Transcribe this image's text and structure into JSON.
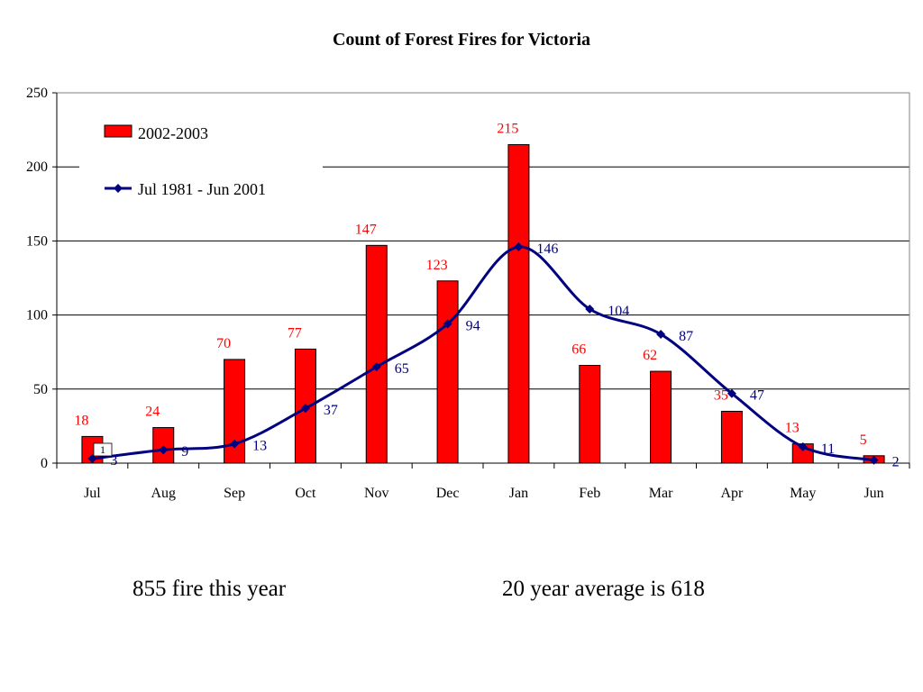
{
  "chart_data": {
    "type": "bar",
    "title": "Count of Forest Fires for Victoria",
    "categories": [
      "Jul",
      "Aug",
      "Sep",
      "Oct",
      "Nov",
      "Dec",
      "Jan",
      "Feb",
      "Mar",
      "Apr",
      "May",
      "Jun"
    ],
    "ylim": [
      0,
      250
    ],
    "yticks": [
      0,
      50,
      100,
      150,
      200,
      250
    ],
    "grid": true,
    "legend_position": "top-left",
    "series": [
      {
        "name": "2002-2003",
        "type": "bar",
        "color": "#ff0000",
        "values": [
          18,
          24,
          70,
          77,
          147,
          123,
          215,
          66,
          62,
          35,
          13,
          5
        ]
      },
      {
        "name": "Jul 1981 - Jun 2001",
        "type": "line",
        "color": "#000080",
        "values": [
          3,
          9,
          13,
          37,
          65,
          94,
          146,
          104,
          87,
          47,
          11,
          2
        ]
      }
    ],
    "annotations": [
      "1"
    ]
  },
  "notes": {
    "left": "855 fire this year",
    "right": "20 year average is 618"
  }
}
